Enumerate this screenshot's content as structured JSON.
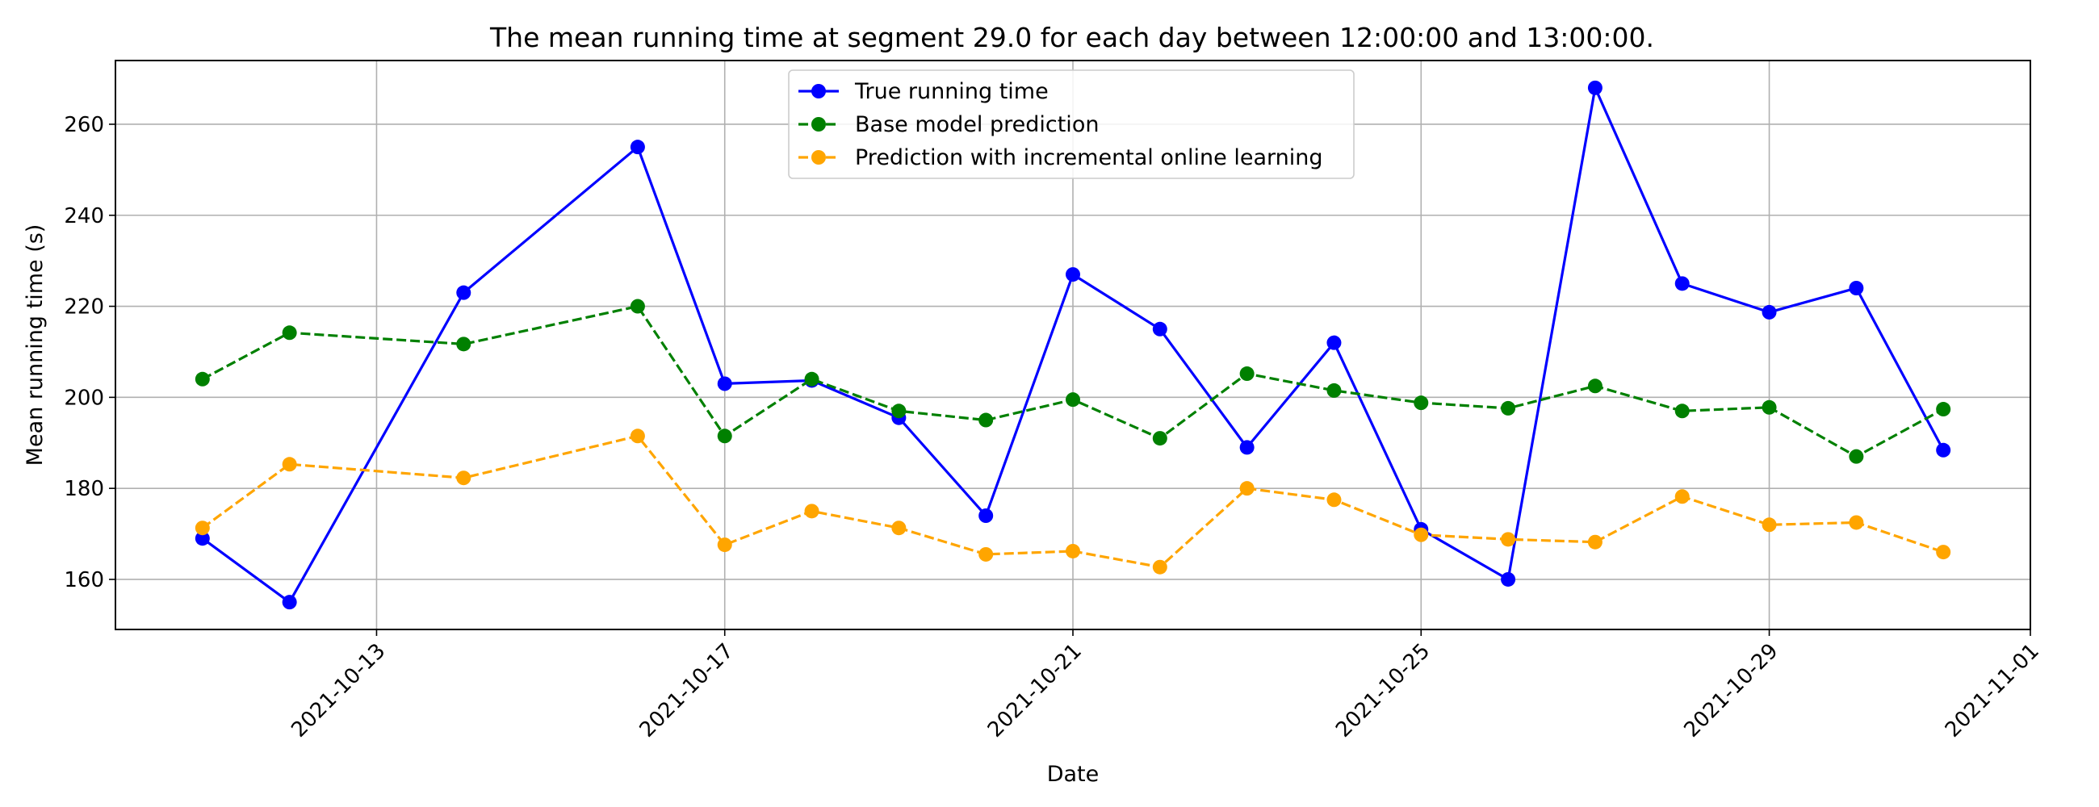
{
  "chart_data": {
    "type": "line",
    "title": "The mean running time at segment 29.0 for each day between 12:00:00 and 13:00:00.",
    "xlabel": "Date",
    "ylabel": "Mean running time (s)",
    "xlim": [
      "2021-10-10",
      "2021-11-01"
    ],
    "ylim": [
      149,
      274
    ],
    "x_ticks": [
      "2021-10-13",
      "2021-10-17",
      "2021-10-21",
      "2021-10-25",
      "2021-10-29",
      "2021-11-01"
    ],
    "y_ticks": [
      160,
      180,
      200,
      220,
      240,
      260
    ],
    "grid": true,
    "legend_position": "top-center",
    "x": [
      "2021-10-11",
      "2021-10-12",
      "2021-10-14",
      "2021-10-16",
      "2021-10-17",
      "2021-10-18",
      "2021-10-19",
      "2021-10-20",
      "2021-10-21",
      "2021-10-22",
      "2021-10-23",
      "2021-10-24",
      "2021-10-25",
      "2021-10-26",
      "2021-10-27",
      "2021-10-28",
      "2021-10-29",
      "2021-10-30",
      "2021-10-31"
    ],
    "series": [
      {
        "name": "True running time",
        "color": "#0000ff",
        "line_style": "solid",
        "values": [
          169,
          155,
          223,
          255,
          203,
          203.7,
          195.5,
          174,
          227,
          215,
          189,
          212,
          171,
          160,
          268,
          225,
          218.7,
          224,
          188.4
        ]
      },
      {
        "name": "Base model prediction",
        "color": "#008000",
        "line_style": "dashed",
        "values": [
          204,
          214.2,
          211.7,
          220,
          191.5,
          204,
          197,
          195,
          199.5,
          191,
          205.2,
          201.5,
          198.8,
          197.6,
          202.5,
          197,
          197.8,
          187,
          197.4
        ]
      },
      {
        "name": "Prediction with incremental online learning",
        "color": "#ffa500",
        "line_style": "dashed",
        "values": [
          171.3,
          185.3,
          182.3,
          191.5,
          167.6,
          175,
          171.3,
          165.5,
          166.2,
          162.7,
          180,
          177.5,
          169.8,
          168.8,
          168.2,
          178.2,
          172,
          172.5,
          166
        ]
      }
    ]
  }
}
